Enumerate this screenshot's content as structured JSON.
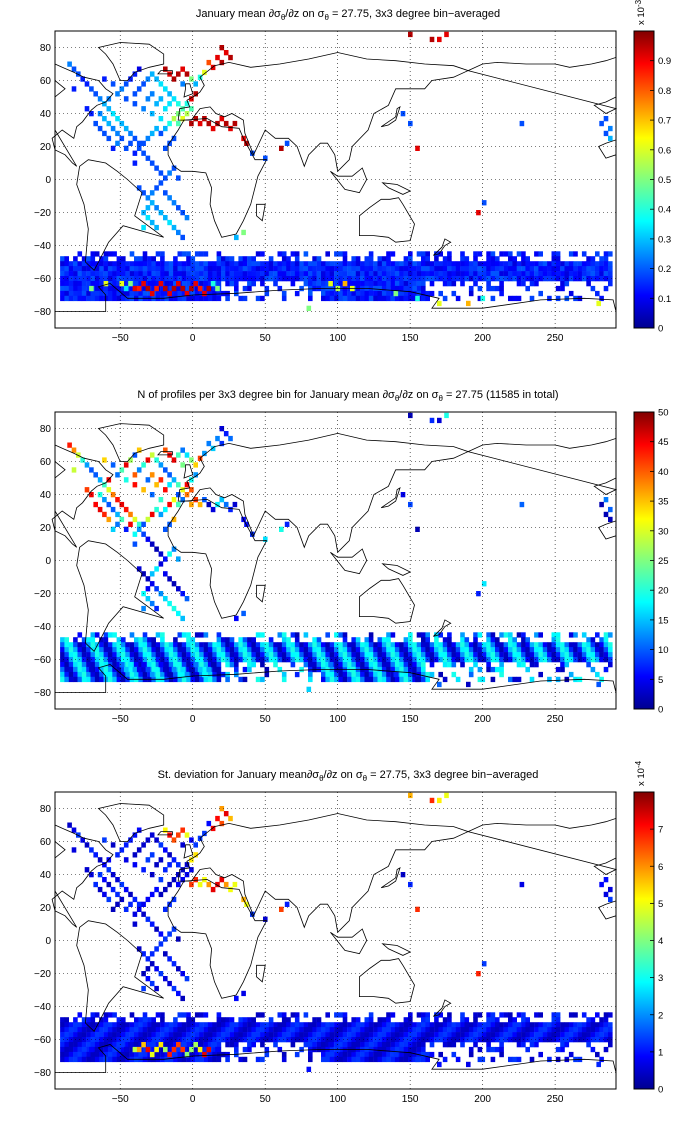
{
  "figure": {
    "background": "#ffffff",
    "land_outline_color": "#000000",
    "colormap": "jet"
  },
  "chart_data": [
    {
      "type": "heatmap",
      "title": "January mean ∂σθ/∂z on σθ = 27.75, 3x3 degree bin−averaged",
      "title_parts": [
        "January mean ",
        "∂σ",
        "θ",
        "/∂z on σ",
        "θ",
        " = 27.75, 3x3 degree bin−averaged"
      ],
      "xlabel": "",
      "ylabel": "",
      "xlim": [
        -95,
        292
      ],
      "ylim": [
        -90,
        90
      ],
      "x_ticks": [
        -50,
        0,
        50,
        100,
        150,
        200,
        250
      ],
      "y_ticks": [
        80,
        60,
        40,
        20,
        0,
        -20,
        -40,
        -60,
        -80
      ],
      "grid": true,
      "grid_style": "dotted",
      "colorbar": {
        "min": 0,
        "max": 1,
        "ticks": [
          0,
          0.1,
          0.2,
          0.3,
          0.4,
          0.5,
          0.6,
          0.7,
          0.8,
          0.9
        ],
        "multiplier": "x 10",
        "exponent": "-3"
      },
      "cells": [
        [
          -85,
          70,
          0.25
        ],
        [
          -82,
          67,
          0.2
        ],
        [
          -79,
          64,
          0.2
        ],
        [
          -76,
          61,
          0.15
        ],
        [
          -73,
          58,
          0.15
        ],
        [
          -82,
          55,
          0.15
        ],
        [
          -70,
          55,
          0.2
        ],
        [
          -67,
          52,
          0.2
        ],
        [
          -64,
          49,
          0.25
        ],
        [
          -61,
          46,
          0.3
        ],
        [
          -58,
          43,
          0.3
        ],
        [
          -55,
          40,
          0.35
        ],
        [
          -52,
          37,
          0.35
        ],
        [
          -49,
          34,
          0.3
        ],
        [
          -46,
          31,
          0.3
        ],
        [
          -43,
          28,
          0.25
        ],
        [
          -40,
          25,
          0.2
        ],
        [
          -37,
          22,
          0.2
        ],
        [
          -64,
          40,
          0.25
        ],
        [
          -61,
          37,
          0.3
        ],
        [
          -58,
          34,
          0.3
        ],
        [
          -55,
          31,
          0.25
        ],
        [
          -52,
          28,
          0.25
        ],
        [
          -67,
          34,
          0.2
        ],
        [
          -46,
          49,
          0.2
        ],
        [
          -40,
          46,
          0.2
        ],
        [
          -34,
          43,
          0.25
        ],
        [
          -28,
          40,
          0.3
        ],
        [
          -22,
          37,
          0.35
        ],
        [
          -16,
          34,
          0.4
        ],
        [
          -13,
          37,
          0.55
        ],
        [
          -10,
          40,
          0.5
        ],
        [
          -7,
          43,
          0.45
        ],
        [
          -10,
          46,
          0.4
        ],
        [
          -13,
          49,
          0.35
        ],
        [
          -16,
          52,
          0.3
        ],
        [
          -19,
          55,
          0.35
        ],
        [
          -22,
          58,
          0.35
        ],
        [
          -25,
          61,
          0.3
        ],
        [
          -28,
          64,
          0.3
        ],
        [
          -31,
          61,
          0.25
        ],
        [
          -34,
          58,
          0.2
        ],
        [
          -37,
          55,
          0.2
        ],
        [
          -40,
          52,
          0.2
        ],
        [
          -31,
          49,
          0.25
        ],
        [
          -25,
          46,
          0.3
        ],
        [
          -19,
          43,
          0.35
        ],
        [
          -22,
          49,
          0.3
        ],
        [
          -28,
          52,
          0.25
        ],
        [
          -16,
          46,
          0.35
        ],
        [
          -10,
          34,
          0.45
        ],
        [
          -7,
          37,
          0.6
        ],
        [
          -4,
          40,
          0.55
        ],
        [
          -1,
          43,
          0.45
        ],
        [
          -4,
          46,
          0.4
        ],
        [
          -1,
          49,
          0.9
        ],
        [
          2,
          52,
          0.95
        ],
        [
          -19,
          67,
          0.95
        ],
        [
          -16,
          64,
          0.9
        ],
        [
          -13,
          61,
          0.95
        ],
        [
          -10,
          64,
          0.95
        ],
        [
          -7,
          67,
          0.9
        ],
        [
          -4,
          64,
          0.95
        ],
        [
          -1,
          61,
          0.5
        ],
        [
          2,
          58,
          0.3
        ],
        [
          -7,
          58,
          0.25
        ],
        [
          -25,
          31,
          0.3
        ],
        [
          -28,
          28,
          0.3
        ],
        [
          -31,
          25,
          0.25
        ],
        [
          -34,
          22,
          0.2
        ],
        [
          -37,
          19,
          0.2
        ],
        [
          -40,
          16,
          0.15
        ],
        [
          -34,
          16,
          0.2
        ],
        [
          -31,
          13,
          0.2
        ],
        [
          -28,
          10,
          0.2
        ],
        [
          -25,
          7,
          0.2
        ],
        [
          -22,
          4,
          0.2
        ],
        [
          -19,
          1,
          0.2
        ],
        [
          -22,
          -2,
          0.2
        ],
        [
          -25,
          -5,
          0.2
        ],
        [
          -28,
          -8,
          0.25
        ],
        [
          -31,
          -11,
          0.25
        ],
        [
          -28,
          -14,
          0.3
        ],
        [
          -25,
          -17,
          0.25
        ],
        [
          -22,
          -20,
          0.3
        ],
        [
          -19,
          -23,
          0.3
        ],
        [
          -16,
          -26,
          0.35
        ],
        [
          -13,
          -29,
          0.3
        ],
        [
          -10,
          -32,
          0.25
        ],
        [
          -7,
          -35,
          0.2
        ],
        [
          -31,
          -17,
          0.3
        ],
        [
          -34,
          -20,
          0.3
        ],
        [
          -31,
          -23,
          0.35
        ],
        [
          -28,
          -26,
          0.3
        ],
        [
          -25,
          -29,
          0.3
        ],
        [
          -34,
          -29,
          0.35
        ],
        [
          -19,
          -8,
          0.2
        ],
        [
          -16,
          -11,
          0.25
        ],
        [
          -13,
          -14,
          0.25
        ],
        [
          -10,
          -17,
          0.2
        ],
        [
          -7,
          -20,
          0.2
        ],
        [
          -4,
          -23,
          0.25
        ],
        [
          -37,
          -5,
          0.2
        ],
        [
          -34,
          -8,
          0.2
        ],
        [
          -16,
          4,
          0.25
        ],
        [
          -13,
          7,
          0.2
        ],
        [
          -10,
          1,
          0.2
        ],
        [
          -40,
          10,
          0.15
        ],
        [
          -19,
          19,
          0.2
        ],
        [
          -16,
          22,
          0.2
        ],
        [
          -13,
          25,
          0.2
        ],
        [
          -22,
          28,
          0.2
        ],
        [
          -19,
          31,
          0.3
        ],
        [
          -52,
          22,
          0.25
        ],
        [
          -55,
          19,
          0.15
        ],
        [
          -46,
          19,
          0.2
        ],
        [
          -43,
          22,
          0.2
        ],
        [
          -49,
          25,
          0.2
        ],
        [
          -58,
          25,
          0.2
        ],
        [
          -61,
          28,
          0.2
        ],
        [
          -64,
          31,
          0.2
        ],
        [
          -70,
          40,
          0.15
        ],
        [
          -73,
          43,
          0.15
        ],
        [
          -58,
          49,
          0.25
        ],
        [
          -52,
          52,
          0.25
        ],
        [
          -49,
          55,
          0.25
        ],
        [
          -46,
          58,
          0.2
        ],
        [
          -43,
          61,
          0.15
        ],
        [
          -40,
          64,
          0.15
        ],
        [
          -37,
          67,
          0.1
        ],
        [
          -55,
          58,
          0.2
        ],
        [
          -61,
          61,
          0.15
        ],
        [
          20,
          80,
          0.95
        ],
        [
          23,
          77,
          0.9
        ],
        [
          26,
          74,
          0.95
        ],
        [
          17,
          74,
          0.9
        ],
        [
          20,
          71,
          0.95
        ],
        [
          14,
          68,
          0.9
        ],
        [
          11,
          71,
          0.8
        ],
        [
          8,
          65,
          0.6
        ],
        [
          5,
          62,
          0.4
        ],
        [
          150,
          88,
          0.95
        ],
        [
          165,
          85,
          0.95
        ],
        [
          170,
          85,
          0.9
        ],
        [
          175,
          88,
          0.9
        ],
        [
          -1,
          34,
          0.95
        ],
        [
          2,
          37,
          0.95
        ],
        [
          5,
          34,
          0.9
        ],
        [
          8,
          37,
          0.95
        ],
        [
          11,
          34,
          0.95
        ],
        [
          14,
          31,
          0.9
        ],
        [
          17,
          34,
          0.95
        ],
        [
          20,
          37,
          0.9
        ],
        [
          23,
          34,
          0.95
        ],
        [
          26,
          31,
          0.9
        ],
        [
          29,
          34,
          0.95
        ],
        [
          35,
          25,
          0.9
        ],
        [
          37,
          22,
          0.95
        ],
        [
          41,
          16,
          0.2
        ],
        [
          50,
          13,
          0.2
        ],
        [
          61,
          19,
          0.95
        ],
        [
          65,
          22,
          0.2
        ],
        [
          145,
          40,
          0.2
        ],
        [
          150,
          34,
          0.2
        ],
        [
          155,
          19,
          0.9
        ],
        [
          197,
          -20,
          0.9
        ],
        [
          201,
          -14,
          0.2
        ],
        [
          227,
          34,
          0.2
        ],
        [
          285,
          37,
          0.2
        ],
        [
          288,
          31,
          0.25
        ],
        [
          288,
          25,
          0.3
        ],
        [
          285,
          28,
          0.2
        ],
        [
          282,
          34,
          0.2
        ],
        [
          35,
          -32,
          0.5
        ],
        [
          30,
          -35,
          0.3
        ],
        [
          80,
          -78,
          0.5
        ]
      ],
      "bands": [
        {
          "lon_start": -90,
          "lon_end": 290,
          "lat_start": -45,
          "lat_end": -72,
          "base": 0.15
        }
      ],
      "hot_patches": [
        [
          -40,
          -66,
          0.9
        ],
        [
          -37,
          -66,
          0.85
        ],
        [
          -34,
          -63,
          0.9
        ],
        [
          -31,
          -66,
          0.95
        ],
        [
          -28,
          -69,
          0.9
        ],
        [
          -25,
          -66,
          0.85
        ],
        [
          -22,
          -63,
          0.9
        ],
        [
          -19,
          -66,
          0.95
        ],
        [
          -16,
          -69,
          0.9
        ],
        [
          -13,
          -66,
          0.95
        ],
        [
          -10,
          -63,
          0.9
        ],
        [
          -7,
          -66,
          0.95
        ],
        [
          -4,
          -69,
          0.9
        ],
        [
          -1,
          -66,
          0.95
        ],
        [
          2,
          -63,
          0.9
        ],
        [
          5,
          -66,
          0.85
        ],
        [
          8,
          -69,
          0.9
        ],
        [
          11,
          -66,
          0.95
        ],
        [
          -43,
          -63,
          0.5
        ],
        [
          -46,
          -66,
          0.35
        ],
        [
          -49,
          -63,
          0.6
        ],
        [
          14,
          -63,
          0.4
        ],
        [
          17,
          -66,
          0.5
        ],
        [
          95,
          -63,
          0.6
        ],
        [
          100,
          -66,
          0.55
        ],
        [
          105,
          -63,
          0.7
        ],
        [
          110,
          -66,
          0.6
        ],
        [
          140,
          -69,
          0.5
        ],
        [
          155,
          -72,
          0.4
        ],
        [
          170,
          -75,
          0.6
        ],
        [
          190,
          -75,
          0.7
        ],
        [
          200,
          -72,
          0.4
        ],
        [
          280,
          -75,
          0.6
        ],
        [
          -70,
          -66,
          0.5
        ],
        [
          -60,
          -63,
          0.6
        ]
      ]
    },
    {
      "type": "heatmap",
      "title": "N of profiles per 3x3 degree bin for January mean ∂σθ/∂z on σθ = 27.75 (11585 in total)",
      "title_parts": [
        "N of profiles per 3x3 degree bin for January mean ",
        "∂σ",
        "θ",
        "/∂z on σ",
        "θ",
        " = 27.75 (11585 in total)"
      ],
      "xlabel": "",
      "ylabel": "",
      "xlim": [
        -95,
        292
      ],
      "ylim": [
        -90,
        90
      ],
      "x_ticks": [
        -50,
        0,
        50,
        100,
        150,
        200,
        250
      ],
      "y_ticks": [
        80,
        60,
        40,
        20,
        0,
        -20,
        -40,
        -60,
        -80
      ],
      "grid": true,
      "grid_style": "dotted",
      "colorbar": {
        "min": 0,
        "max": 50,
        "ticks": [
          0,
          5,
          10,
          15,
          20,
          25,
          30,
          35,
          40,
          45,
          50
        ]
      }
    },
    {
      "type": "heatmap",
      "title": "St. deviation for January mean ∂σθ/∂z on σθ = 27.75, 3x3 degree bin−averaged",
      "title_parts": [
        "St. deviation for January mean",
        "∂σ",
        "θ",
        "/∂z on σ",
        "θ",
        " = 27.75, 3x3 degree bin−averaged"
      ],
      "xlabel": "",
      "ylabel": "",
      "xlim": [
        -95,
        292
      ],
      "ylim": [
        -90,
        90
      ],
      "x_ticks": [
        -50,
        0,
        50,
        100,
        150,
        200,
        250
      ],
      "y_ticks": [
        80,
        60,
        40,
        20,
        0,
        -20,
        -40,
        -60,
        -80
      ],
      "grid": true,
      "grid_style": "dotted",
      "colorbar": {
        "min": 0,
        "max": 8,
        "ticks": [
          0,
          1,
          2,
          3,
          4,
          5,
          6,
          7
        ],
        "multiplier": "x 10",
        "exponent": "-4"
      }
    }
  ]
}
